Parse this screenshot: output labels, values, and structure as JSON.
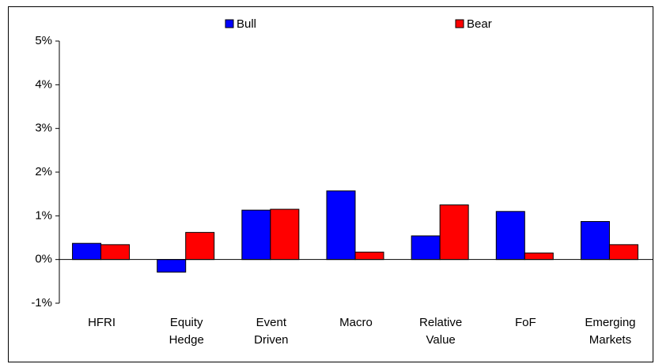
{
  "chart_data": {
    "type": "bar",
    "categories": [
      "HFRI",
      "Equity Hedge",
      "Event Driven",
      "Macro",
      "Relative Value",
      "FoF",
      "Emerging Markets"
    ],
    "series": [
      {
        "name": "Bull",
        "color": "#0000ff",
        "values": [
          0.37,
          -0.29,
          1.13,
          1.57,
          0.54,
          1.1,
          0.87
        ]
      },
      {
        "name": "Bear",
        "color": "#ff0000",
        "values": [
          0.34,
          0.62,
          1.15,
          0.17,
          1.25,
          0.15,
          0.34
        ]
      }
    ],
    "ylim": [
      -1,
      5
    ],
    "yticks": [
      {
        "value": -1,
        "label": "-1%"
      },
      {
        "value": 0,
        "label": "0%"
      },
      {
        "value": 1,
        "label": "1%"
      },
      {
        "value": 2,
        "label": "2%"
      },
      {
        "value": 3,
        "label": "3%"
      },
      {
        "value": 4,
        "label": "4%"
      },
      {
        "value": 5,
        "label": "5%"
      }
    ],
    "grid": false
  }
}
